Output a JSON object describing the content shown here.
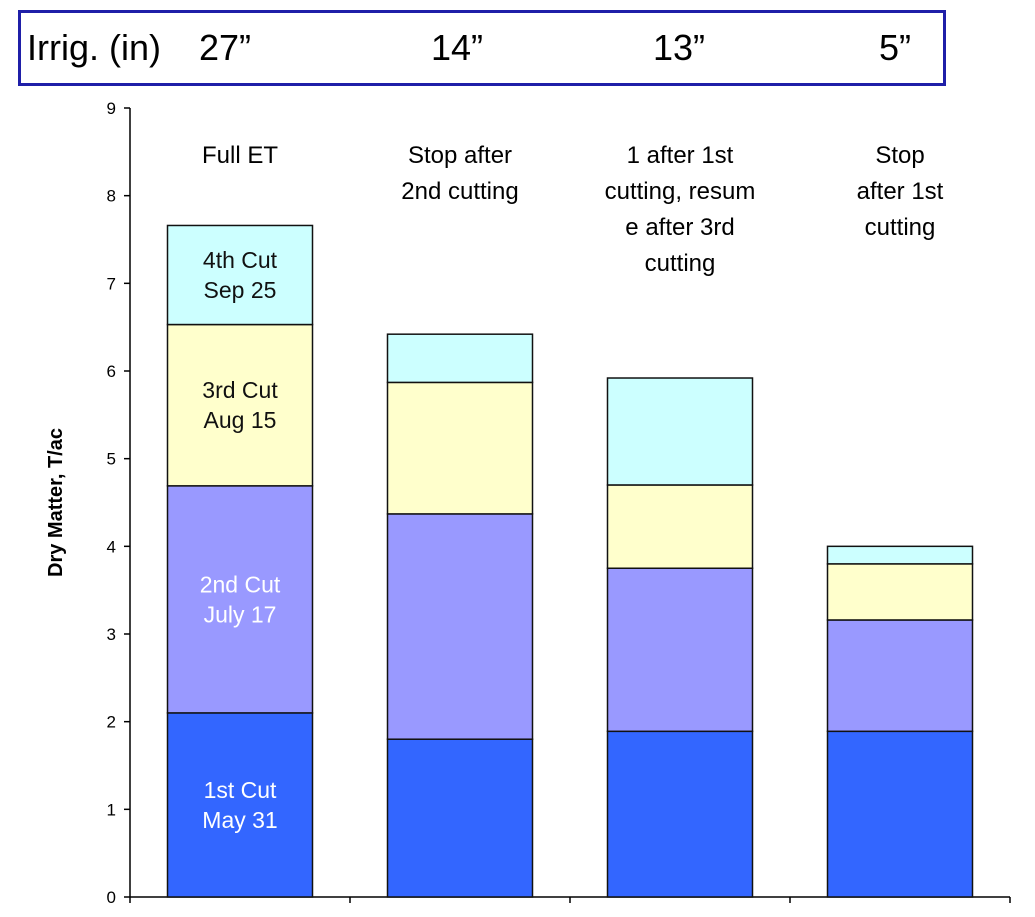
{
  "irrigation_header": {
    "label": "Irrig. (in)",
    "values": [
      "27”",
      "14”",
      "13”",
      "5”"
    ],
    "border_color": "#1f1fa8"
  },
  "chart_data": {
    "type": "bar",
    "stacked": true,
    "ylabel": "Dry Matter, T/ac",
    "xlabel": "",
    "ylim": [
      0,
      9
    ],
    "yticks": [
      "0",
      "1",
      "2",
      "3",
      "4",
      "5",
      "6",
      "7",
      "8",
      "9"
    ],
    "grid": false,
    "categories": [
      [
        "Full ET"
      ],
      [
        "Stop after",
        "2nd cutting"
      ],
      [
        "1 after 1st",
        "cutting,  resum",
        "e after 3rd",
        "cutting"
      ],
      [
        "Stop",
        "after 1st",
        "cutting"
      ]
    ],
    "series": [
      {
        "name": [
          "1st Cut",
          "May 31"
        ],
        "color": "#3366ff",
        "label_color": "#ffffff",
        "values": [
          2.1,
          1.8,
          1.89,
          1.89
        ]
      },
      {
        "name": [
          "2nd Cut",
          "July 17"
        ],
        "color": "#9999ff",
        "label_color": "#ffffff",
        "values": [
          2.59,
          2.57,
          1.86,
          1.27
        ]
      },
      {
        "name": [
          "3rd Cut",
          "Aug 15"
        ],
        "color": "#ffffcc",
        "label_color": "#111111",
        "values": [
          1.84,
          1.5,
          0.95,
          0.64
        ]
      },
      {
        "name": [
          "4th Cut",
          "Sep 25"
        ],
        "color": "#ccffff",
        "label_color": "#111111",
        "values": [
          1.13,
          0.55,
          1.22,
          0.2
        ]
      }
    ],
    "series_labels_shown_on_category": 0
  }
}
